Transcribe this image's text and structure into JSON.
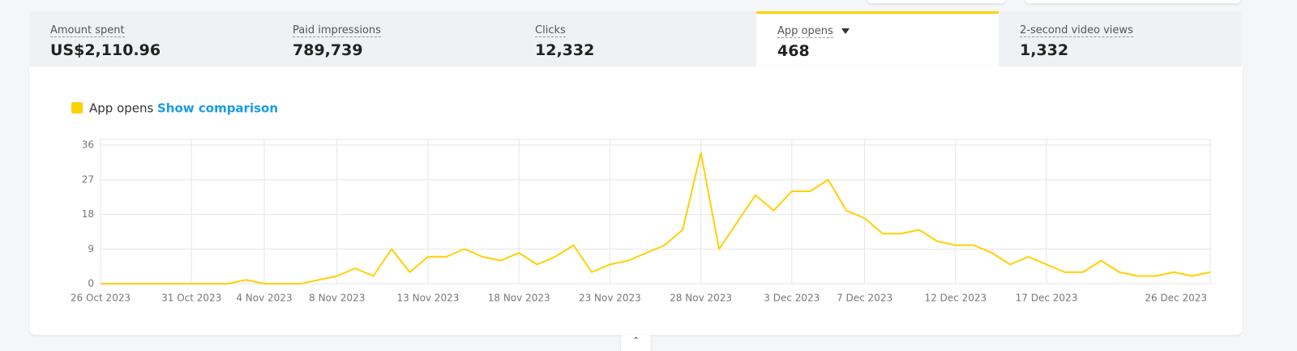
{
  "tabs": [
    {
      "label": "Amount spent",
      "value": "US$2,110.96"
    },
    {
      "label": "Paid impressions",
      "value": "789,739"
    },
    {
      "label": "Clicks",
      "value": "12,332"
    },
    {
      "label": "App opens",
      "value": "468"
    },
    {
      "label": "2-second video views",
      "value": "1,332"
    }
  ],
  "active_tab": 3,
  "show_comparison": "Show comparison",
  "chart_data": {
    "type": "line",
    "x": [
      "2023-10-26",
      "2023-10-27",
      "2023-10-28",
      "2023-10-29",
      "2023-10-30",
      "2023-10-31",
      "2023-11-01",
      "2023-11-02",
      "2023-11-03",
      "2023-11-04",
      "2023-11-05",
      "2023-11-06",
      "2023-11-07",
      "2023-11-08",
      "2023-11-09",
      "2023-11-10",
      "2023-11-11",
      "2023-11-12",
      "2023-11-13",
      "2023-11-14",
      "2023-11-15",
      "2023-11-16",
      "2023-11-17",
      "2023-11-18",
      "2023-11-19",
      "2023-11-20",
      "2023-11-21",
      "2023-11-22",
      "2023-11-23",
      "2023-11-24",
      "2023-11-25",
      "2023-11-26",
      "2023-11-27",
      "2023-11-28",
      "2023-11-29",
      "2023-11-30",
      "2023-12-01",
      "2023-12-02",
      "2023-12-03",
      "2023-12-04",
      "2023-12-05",
      "2023-12-06",
      "2023-12-07",
      "2023-12-08",
      "2023-12-09",
      "2023-12-10",
      "2023-12-11",
      "2023-12-12",
      "2023-12-13",
      "2023-12-14",
      "2023-12-15",
      "2023-12-16",
      "2023-12-17",
      "2023-12-18",
      "2023-12-19",
      "2023-12-20",
      "2023-12-21",
      "2023-12-22",
      "2023-12-23",
      "2023-12-24",
      "2023-12-25",
      "2023-12-26"
    ],
    "series": [
      {
        "name": "App opens",
        "color": "#ffd100",
        "values": [
          0,
          0,
          0,
          0,
          0,
          0,
          0,
          0,
          1,
          0,
          0,
          0,
          1,
          2,
          4,
          2,
          9,
          3,
          7,
          7,
          9,
          7,
          6,
          8,
          5,
          7,
          10,
          3,
          5,
          6,
          8,
          10,
          14,
          34,
          9,
          16,
          23,
          19,
          24,
          24,
          27,
          19,
          17,
          13,
          13,
          14,
          11,
          10,
          10,
          8,
          5,
          7,
          5,
          3,
          3,
          6,
          3,
          2,
          2,
          3,
          2,
          3
        ]
      }
    ],
    "xlim": [
      "2023-10-26",
      "2023-12-26"
    ],
    "xticks": [
      {
        "value": "2023-10-26",
        "label": "26 Oct 2023"
      },
      {
        "value": "2023-10-31",
        "label": "31 Oct 2023"
      },
      {
        "value": "2023-11-04",
        "label": "4 Nov 2023"
      },
      {
        "value": "2023-11-08",
        "label": "8 Nov 2023"
      },
      {
        "value": "2023-11-13",
        "label": "13 Nov 2023"
      },
      {
        "value": "2023-11-18",
        "label": "18 Nov 2023"
      },
      {
        "value": "2023-11-23",
        "label": "23 Nov 2023"
      },
      {
        "value": "2023-11-28",
        "label": "28 Nov 2023"
      },
      {
        "value": "2023-12-03",
        "label": "3 Dec 2023"
      },
      {
        "value": "2023-12-07",
        "label": "7 Dec 2023"
      },
      {
        "value": "2023-12-12",
        "label": "12 Dec 2023"
      },
      {
        "value": "2023-12-17",
        "label": "17 Dec 2023"
      },
      {
        "value": "2023-12-26",
        "label": "26 Dec 2023"
      }
    ],
    "ylim": [
      0,
      36
    ],
    "yticks": [
      0,
      9,
      18,
      27,
      36
    ],
    "grid": true
  }
}
